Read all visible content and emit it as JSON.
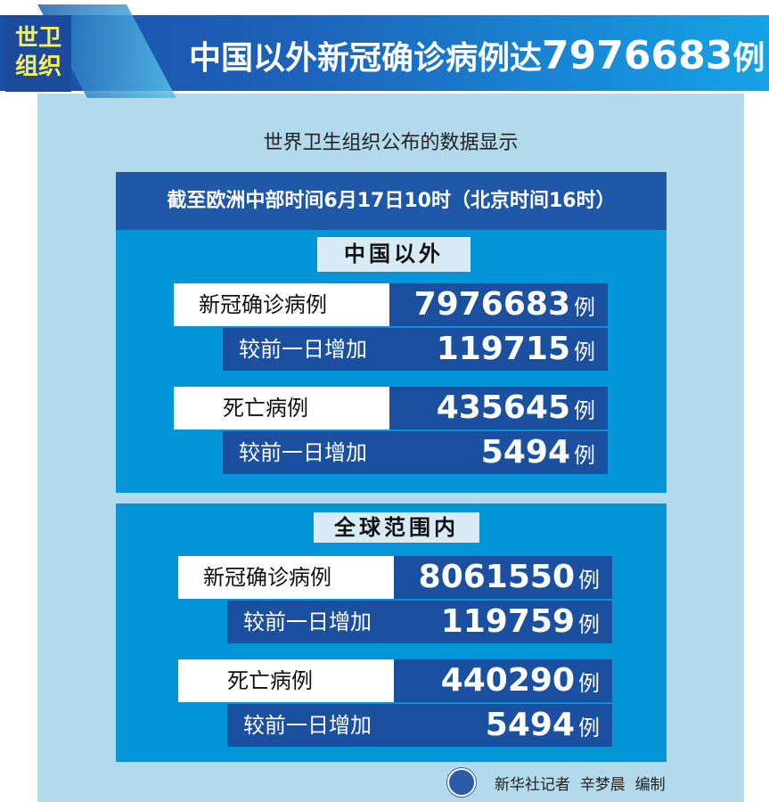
{
  "header": {
    "tag_line1": "世卫",
    "tag_line2": "组织",
    "title_prefix": "中国以外新冠确诊病例达",
    "title_number": "7976683",
    "title_suffix": "例"
  },
  "subtitle": "世界卫生组织公布的数据显示",
  "banner": "截至欧洲中部时间6月17日10时（北京时间16时）",
  "sections": [
    {
      "label": "中国以外",
      "rows": [
        {
          "label": "新冠确诊病例",
          "value": "7976683",
          "unit": "例"
        },
        {
          "label": "较前一日增加",
          "value": "119715",
          "unit": "例"
        },
        {
          "label": "死亡病例",
          "value": "435645",
          "unit": "例"
        },
        {
          "label": "较前一日增加",
          "value": "5494",
          "unit": "例"
        }
      ]
    },
    {
      "label": "全球范围内",
      "rows": [
        {
          "label": "新冠确诊病例",
          "value": "8061550",
          "unit": "例"
        },
        {
          "label": "较前一日增加",
          "value": "119759",
          "unit": "例"
        },
        {
          "label": "死亡病例",
          "value": "440290",
          "unit": "例"
        },
        {
          "label": "较前一日增加",
          "value": "5494",
          "unit": "例"
        }
      ]
    }
  ],
  "footer": {
    "credit": "新华社记者  辛梦晨  编制",
    "logo_icon": "xinhua-logo-icon"
  },
  "colors": {
    "header_dark": "#1a4fa8",
    "header_light": "#15a3e6",
    "panel": "#b3d9ec",
    "section": "#0495d8",
    "value_box": "#1b4f9f",
    "tag_text": "#f5f05a"
  }
}
